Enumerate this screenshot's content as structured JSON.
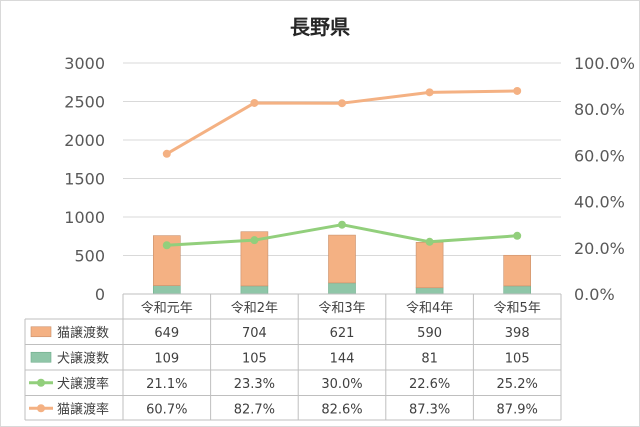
{
  "chart_data": {
    "type": "bar",
    "title": "長野県",
    "categories": [
      "令和元年",
      "令和2年",
      "令和3年",
      "令和4年",
      "令和5年"
    ],
    "y_left_ticks": [
      "0",
      "500",
      "1000",
      "1500",
      "2000",
      "2500",
      "3000"
    ],
    "y_right_ticks": [
      "0.0%",
      "20.0%",
      "40.0%",
      "60.0%",
      "80.0%",
      "100.0%"
    ],
    "ylim_left": [
      0,
      3000
    ],
    "ylim_right": [
      0,
      100
    ],
    "stacked": true,
    "grid": true,
    "legend": "data-table",
    "series": [
      {
        "name": "猫譲渡数",
        "kind": "bar",
        "axis": "left",
        "color": "#f4b183",
        "values": [
          649,
          704,
          621,
          590,
          398
        ],
        "labels": [
          "649",
          "704",
          "621",
          "590",
          "398"
        ]
      },
      {
        "name": "犬譲渡数",
        "kind": "bar",
        "axis": "left",
        "color": "#8fc6a8",
        "values": [
          109,
          105,
          144,
          81,
          105
        ],
        "labels": [
          "109",
          "105",
          "144",
          "81",
          "105"
        ]
      },
      {
        "name": "犬譲渡率",
        "kind": "line",
        "axis": "right",
        "color": "#92cf7c",
        "values": [
          21.1,
          23.3,
          30.0,
          22.6,
          25.2
        ],
        "labels": [
          "21.1%",
          "23.3%",
          "30.0%",
          "22.6%",
          "25.2%"
        ]
      },
      {
        "name": "猫譲渡率",
        "kind": "line",
        "axis": "right",
        "color": "#f4b183",
        "values": [
          60.7,
          82.7,
          82.6,
          87.3,
          87.9
        ],
        "labels": [
          "60.7%",
          "82.7%",
          "82.6%",
          "87.3%",
          "87.9%"
        ]
      }
    ]
  }
}
